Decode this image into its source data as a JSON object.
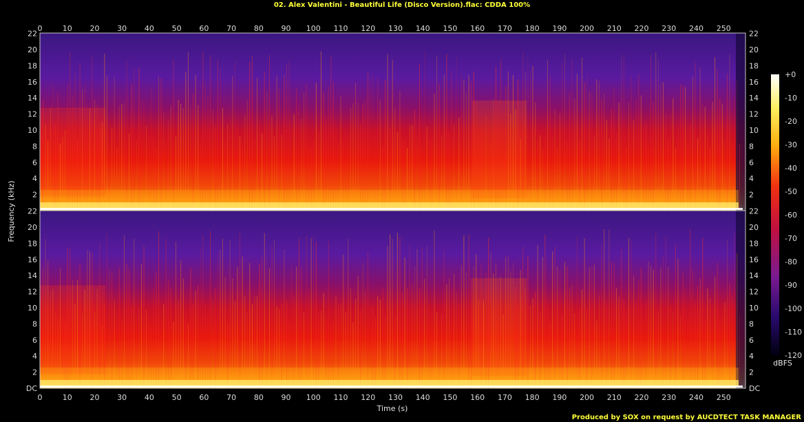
{
  "chart_data": {
    "type": "heatmap",
    "title": "02. Alex Valentini - Beautiful Life (Disco Version).flac: CDDA 100%",
    "xlabel": "Time (s)",
    "ylabel": "Frequency (kHz)",
    "xlim": [
      0,
      258
    ],
    "x_ticks": [
      "0",
      "10",
      "20",
      "30",
      "40",
      "50",
      "60",
      "70",
      "80",
      "90",
      "100",
      "110",
      "120",
      "130",
      "140",
      "150",
      "160",
      "170",
      "180",
      "190",
      "200",
      "210",
      "220",
      "230",
      "240",
      "250"
    ],
    "y_ticks_upper_left": [
      "22",
      "20",
      "18",
      "16",
      "14",
      "12",
      "10",
      "8",
      "6",
      "4",
      "2"
    ],
    "y_ticks_upper_right": [
      "22",
      "20",
      "18",
      "16",
      "14",
      "12",
      "10",
      "8",
      "6",
      "4",
      "2"
    ],
    "y_ticks_lower_left": [
      "22",
      "20",
      "18",
      "16",
      "14",
      "12",
      "10",
      "8",
      "6",
      "4",
      "2",
      "DC"
    ],
    "y_ticks_lower_right": [
      "22",
      "20",
      "18",
      "16",
      "14",
      "12",
      "10",
      "8",
      "6",
      "4",
      "2",
      "DC"
    ],
    "ylim_khz": [
      0,
      22.05
    ],
    "channels": 2,
    "colorbar": {
      "label": "dBFS",
      "ticks": [
        "+0",
        "-10",
        "-20",
        "-30",
        "-40",
        "-50",
        "-60",
        "-70",
        "-80",
        "-90",
        "-100",
        "-110",
        "-120"
      ],
      "range": [
        -120,
        0
      ]
    },
    "footer": "Produced by SOX on request by AUCDTECT TASK MANAGER",
    "colors": {
      "background": "#000000",
      "text": "#ffff3a",
      "high": "#ffffff",
      "mid_high": "#ffd000",
      "mid": "#e01010",
      "low": "#4a1a8a",
      "floor": "#000020"
    }
  }
}
